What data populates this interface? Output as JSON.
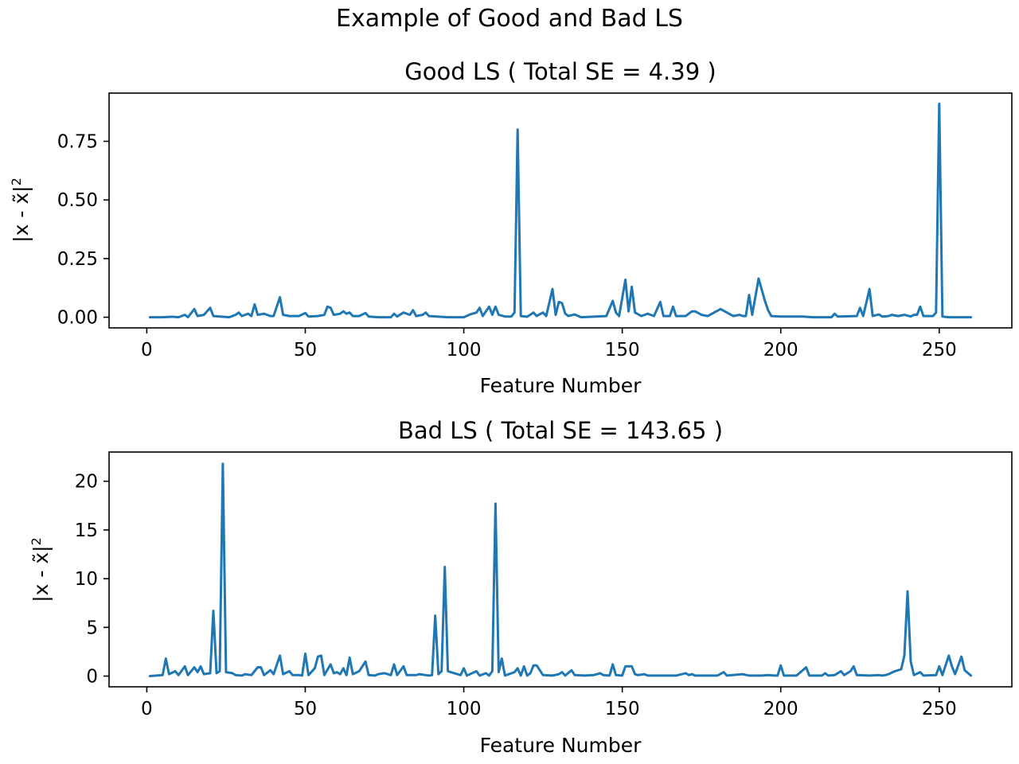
{
  "figure_title": "Example of Good and Bad LS",
  "chart_data": [
    {
      "type": "line",
      "title": "Good LS ( Total SE = 4.39 )",
      "xlabel": "Feature Number",
      "ylabel_base": "|x - x̃|",
      "ylabel_sup": "2",
      "xlim": [
        -11.9,
        272.9
      ],
      "ylim": [
        -0.0455,
        0.9555
      ],
      "xticks": [
        0,
        50,
        100,
        150,
        200,
        250
      ],
      "xtick_labels": [
        "0",
        "50",
        "100",
        "150",
        "200",
        "250"
      ],
      "yticks": [
        0,
        0.25,
        0.5,
        0.75
      ],
      "ytick_labels": [
        "0.00",
        "0.25",
        "0.50",
        "0.75"
      ],
      "grid": false,
      "color": "#1f77b4",
      "points": [
        [
          1,
          0
        ],
        [
          5,
          0
        ],
        [
          8,
          0.002
        ],
        [
          10,
          0
        ],
        [
          12,
          0.01
        ],
        [
          13,
          0
        ],
        [
          15,
          0.035
        ],
        [
          16,
          0.005
        ],
        [
          18,
          0.01
        ],
        [
          20,
          0.04
        ],
        [
          21,
          0.005
        ],
        [
          26,
          0
        ],
        [
          28,
          0.01
        ],
        [
          29,
          0.02
        ],
        [
          30,
          0.005
        ],
        [
          32,
          0.015
        ],
        [
          33,
          0.005
        ],
        [
          34,
          0.055
        ],
        [
          35,
          0.01
        ],
        [
          37,
          0.015
        ],
        [
          39,
          0.005
        ],
        [
          40,
          0.005
        ],
        [
          42,
          0.085
        ],
        [
          43,
          0.01
        ],
        [
          45,
          0.005
        ],
        [
          48,
          0.005
        ],
        [
          50,
          0.018
        ],
        [
          51,
          0.003
        ],
        [
          54,
          0.005
        ],
        [
          56,
          0.01
        ],
        [
          57,
          0.045
        ],
        [
          58,
          0.04
        ],
        [
          59,
          0.01
        ],
        [
          61,
          0.015
        ],
        [
          62,
          0.025
        ],
        [
          63,
          0.015
        ],
        [
          64,
          0.02
        ],
        [
          65,
          0.005
        ],
        [
          67,
          0.005
        ],
        [
          69,
          0.018
        ],
        [
          70,
          0.003
        ],
        [
          73,
          0
        ],
        [
          77,
          0
        ],
        [
          78,
          0.015
        ],
        [
          79,
          0.003
        ],
        [
          81,
          0.02
        ],
        [
          83,
          0.01
        ],
        [
          84,
          0.03
        ],
        [
          85,
          0.005
        ],
        [
          87,
          0.01
        ],
        [
          88,
          0.02
        ],
        [
          89,
          0.005
        ],
        [
          95,
          0
        ],
        [
          100,
          0
        ],
        [
          102,
          0.012
        ],
        [
          104,
          0.02
        ],
        [
          105,
          0.04
        ],
        [
          106,
          0.005
        ],
        [
          108,
          0.045
        ],
        [
          109,
          0.01
        ],
        [
          110,
          0.045
        ],
        [
          111,
          0.01
        ],
        [
          113,
          0.003
        ],
        [
          115,
          0.003
        ],
        [
          116,
          0.02
        ],
        [
          117,
          0.8
        ],
        [
          118,
          0.005
        ],
        [
          120,
          0.002
        ],
        [
          122,
          0.02
        ],
        [
          123,
          0.005
        ],
        [
          125,
          0.02
        ],
        [
          126,
          0.005
        ],
        [
          128,
          0.12
        ],
        [
          129,
          0.01
        ],
        [
          130,
          0.065
        ],
        [
          131,
          0.06
        ],
        [
          132,
          0.015
        ],
        [
          133,
          0.005
        ],
        [
          135,
          0.012
        ],
        [
          137,
          0
        ],
        [
          145,
          0.005
        ],
        [
          147,
          0.07
        ],
        [
          148,
          0.02
        ],
        [
          149,
          0.005
        ],
        [
          151,
          0.16
        ],
        [
          152,
          0.025
        ],
        [
          153,
          0.13
        ],
        [
          154,
          0.02
        ],
        [
          156,
          0.005
        ],
        [
          158,
          0.015
        ],
        [
          160,
          0.005
        ],
        [
          162,
          0.065
        ],
        [
          163,
          0.005
        ],
        [
          165,
          0.005
        ],
        [
          166,
          0.045
        ],
        [
          167,
          0.005
        ],
        [
          170,
          0.005
        ],
        [
          172,
          0.025
        ],
        [
          173,
          0.025
        ],
        [
          175,
          0.01
        ],
        [
          177,
          0.005
        ],
        [
          179,
          0.02
        ],
        [
          181,
          0.035
        ],
        [
          183,
          0.02
        ],
        [
          185,
          0.005
        ],
        [
          187,
          0.01
        ],
        [
          188,
          0.005
        ],
        [
          189,
          0.005
        ],
        [
          190,
          0.095
        ],
        [
          191,
          0.01
        ],
        [
          193,
          0.165
        ],
        [
          195,
          0.07
        ],
        [
          196,
          0.03
        ],
        [
          197,
          0.005
        ],
        [
          200,
          0.003
        ],
        [
          205,
          0.003
        ],
        [
          207,
          0.003
        ],
        [
          210,
          0
        ],
        [
          216,
          0
        ],
        [
          217,
          0.015
        ],
        [
          218,
          0.003
        ],
        [
          224,
          0.005
        ],
        [
          225,
          0.04
        ],
        [
          226,
          0.005
        ],
        [
          228,
          0.12
        ],
        [
          229,
          0.005
        ],
        [
          231,
          0.012
        ],
        [
          232,
          0.003
        ],
        [
          234,
          0.005
        ],
        [
          235,
          0.01
        ],
        [
          237,
          0.005
        ],
        [
          239,
          0.01
        ],
        [
          241,
          0.003
        ],
        [
          242,
          0.01
        ],
        [
          243,
          0.01
        ],
        [
          244,
          0.045
        ],
        [
          245,
          0.005
        ],
        [
          248,
          0.005
        ],
        [
          249,
          0.02
        ],
        [
          250,
          0.91
        ],
        [
          251,
          0.003
        ],
        [
          253,
          0
        ],
        [
          260,
          0
        ]
      ]
    },
    {
      "type": "line",
      "title": "Bad LS ( Total SE = 143.65 )",
      "xlabel": "Feature Number",
      "ylabel_base": "|x - x̃|",
      "ylabel_sup": "2",
      "xlim": [
        -11.9,
        272.9
      ],
      "ylim": [
        -1.1,
        23.0
      ],
      "xticks": [
        0,
        50,
        100,
        150,
        200,
        250
      ],
      "xtick_labels": [
        "0",
        "50",
        "100",
        "150",
        "200",
        "250"
      ],
      "yticks": [
        0,
        5,
        10,
        15,
        20
      ],
      "ytick_labels": [
        "0",
        "5",
        "10",
        "15",
        "20"
      ],
      "grid": false,
      "color": "#1f77b4",
      "points": [
        [
          1,
          0
        ],
        [
          5,
          0.1
        ],
        [
          6,
          1.8
        ],
        [
          7,
          0.2
        ],
        [
          9,
          0.5
        ],
        [
          10,
          0.1
        ],
        [
          12,
          1.0
        ],
        [
          13,
          0.1
        ],
        [
          14,
          0.5
        ],
        [
          15,
          0.9
        ],
        [
          16,
          0.4
        ],
        [
          17,
          1.0
        ],
        [
          18,
          0.2
        ],
        [
          20,
          0.3
        ],
        [
          21,
          6.7
        ],
        [
          22,
          0.3
        ],
        [
          23,
          0.5
        ],
        [
          24,
          21.8
        ],
        [
          25,
          0.4
        ],
        [
          27,
          0.3
        ],
        [
          28,
          0.1
        ],
        [
          30,
          0.05
        ],
        [
          31,
          0.2
        ],
        [
          33,
          0.1
        ],
        [
          35,
          0.9
        ],
        [
          36,
          0.9
        ],
        [
          37,
          0.1
        ],
        [
          39,
          0.6
        ],
        [
          40,
          0.2
        ],
        [
          42,
          2.1
        ],
        [
          43,
          0.2
        ],
        [
          45,
          0.5
        ],
        [
          46,
          0.1
        ],
        [
          48,
          0.1
        ],
        [
          49,
          0.05
        ],
        [
          50,
          2.3
        ],
        [
          51,
          0.1
        ],
        [
          53,
          0.8
        ],
        [
          54,
          2.0
        ],
        [
          55,
          2.1
        ],
        [
          56,
          0.1
        ],
        [
          58,
          1.2
        ],
        [
          59,
          0.3
        ],
        [
          60,
          0.4
        ],
        [
          61,
          0.2
        ],
        [
          62,
          0.8
        ],
        [
          63,
          0.1
        ],
        [
          64,
          1.9
        ],
        [
          65,
          0.2
        ],
        [
          67,
          0.5
        ],
        [
          69,
          1.5
        ],
        [
          70,
          0.1
        ],
        [
          72,
          0.05
        ],
        [
          73,
          0.2
        ],
        [
          75,
          0.3
        ],
        [
          76,
          0.2
        ],
        [
          77,
          0.1
        ],
        [
          78,
          1.2
        ],
        [
          79,
          0.1
        ],
        [
          81,
          1.0
        ],
        [
          82,
          0.1
        ],
        [
          85,
          0.1
        ],
        [
          86,
          0.2
        ],
        [
          88,
          0.1
        ],
        [
          89,
          0.05
        ],
        [
          90,
          0.1
        ],
        [
          91,
          6.2
        ],
        [
          92,
          0.2
        ],
        [
          93,
          0.5
        ],
        [
          94,
          11.2
        ],
        [
          95,
          0.5
        ],
        [
          97,
          0.3
        ],
        [
          98,
          0.2
        ],
        [
          99,
          0.1
        ],
        [
          100,
          0.8
        ],
        [
          101,
          0.05
        ],
        [
          104,
          0.5
        ],
        [
          105,
          0.05
        ],
        [
          107,
          0.3
        ],
        [
          108,
          0.05
        ],
        [
          109,
          0.5
        ],
        [
          110,
          17.7
        ],
        [
          111,
          0.4
        ],
        [
          112,
          1.8
        ],
        [
          113,
          0.05
        ],
        [
          116,
          0.4
        ],
        [
          117,
          0.8
        ],
        [
          118,
          0.05
        ],
        [
          119,
          1.0
        ],
        [
          120,
          0.05
        ],
        [
          121,
          0.3
        ],
        [
          122,
          1.1
        ],
        [
          123,
          1.1
        ],
        [
          124,
          0.6
        ],
        [
          125,
          0.1
        ],
        [
          128,
          0.05
        ],
        [
          130,
          0.2
        ],
        [
          131,
          0.4
        ],
        [
          132,
          0.05
        ],
        [
          134,
          0.6
        ],
        [
          135,
          0.1
        ],
        [
          138,
          0.05
        ],
        [
          141,
          0.1
        ],
        [
          143,
          0.3
        ],
        [
          144,
          0.1
        ],
        [
          146,
          0.05
        ],
        [
          147,
          1.2
        ],
        [
          148,
          0.1
        ],
        [
          150,
          0.05
        ],
        [
          151,
          1.0
        ],
        [
          153,
          1.0
        ],
        [
          154,
          0.2
        ],
        [
          155,
          0.1
        ],
        [
          157,
          0.2
        ],
        [
          158,
          0.05
        ],
        [
          160,
          0.05
        ],
        [
          167,
          0.05
        ],
        [
          170,
          0.3
        ],
        [
          171,
          0.1
        ],
        [
          172,
          0.2
        ],
        [
          173,
          0.05
        ],
        [
          180,
          0.05
        ],
        [
          182,
          0.4
        ],
        [
          183,
          0.05
        ],
        [
          188,
          0.2
        ],
        [
          190,
          0.05
        ],
        [
          194,
          0.05
        ],
        [
          196,
          0.1
        ],
        [
          198,
          0.05
        ],
        [
          199,
          0.05
        ],
        [
          200,
          1.1
        ],
        [
          201,
          0.05
        ],
        [
          205,
          0.05
        ],
        [
          208,
          0.9
        ],
        [
          209,
          0.05
        ],
        [
          211,
          0.05
        ],
        [
          213,
          0.05
        ],
        [
          214,
          0.3
        ],
        [
          215,
          0.05
        ],
        [
          217,
          0.1
        ],
        [
          219,
          0.5
        ],
        [
          220,
          0.1
        ],
        [
          222,
          0.5
        ],
        [
          223,
          1.0
        ],
        [
          224,
          0.1
        ],
        [
          228,
          0.05
        ],
        [
          231,
          0.1
        ],
        [
          232,
          0.05
        ],
        [
          233,
          0.1
        ],
        [
          234,
          0.2
        ],
        [
          236,
          0.5
        ],
        [
          238,
          0.7
        ],
        [
          239,
          2.1
        ],
        [
          240,
          8.7
        ],
        [
          241,
          1.5
        ],
        [
          242,
          0.1
        ],
        [
          244,
          0.4
        ],
        [
          245,
          0.05
        ],
        [
          249,
          0.1
        ],
        [
          250,
          1.0
        ],
        [
          251,
          0.1
        ],
        [
          253,
          2.1
        ],
        [
          254,
          1.0
        ],
        [
          255,
          0.2
        ],
        [
          257,
          2.0
        ],
        [
          258,
          0.6
        ],
        [
          260,
          0.05
        ]
      ]
    }
  ]
}
